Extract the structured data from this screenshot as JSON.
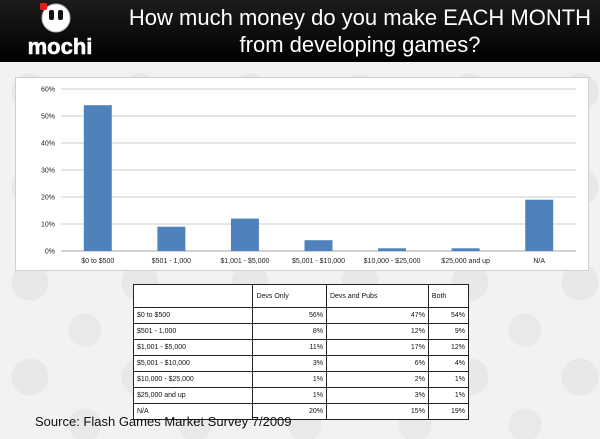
{
  "header": {
    "logo_text": "mochi",
    "title_line1": "How much money do you make EACH MONTH",
    "title_line2": "from developing games?"
  },
  "colors": {
    "bar": "#4f81bd",
    "header_bg": "#000000",
    "logo_accent": "#e02020"
  },
  "chart_data": {
    "type": "bar",
    "title": "",
    "xlabel": "",
    "ylabel": "",
    "categories": [
      "$0 to $500",
      "$501 - 1,000",
      "$1,001 - $5,000",
      "$5,001 - $10,000",
      "$10,000 - $25,000",
      "$25,000 and up",
      "N/A"
    ],
    "values": [
      54,
      9,
      12,
      4,
      1,
      1,
      19
    ],
    "ylim": [
      0,
      60
    ],
    "yticks": [
      "0%",
      "10%",
      "20%",
      "30%",
      "40%",
      "50%",
      "60%"
    ],
    "grid": true,
    "legend": "none"
  },
  "table": {
    "columns": [
      "",
      "Devs Only",
      "Devs and Pubs",
      "Both"
    ],
    "rows": [
      [
        "$0 to $500",
        "56%",
        "47%",
        "54%"
      ],
      [
        "$501 - 1,000",
        "8%",
        "12%",
        "9%"
      ],
      [
        "$1,001 - $5,000",
        "11%",
        "17%",
        "12%"
      ],
      [
        "$5,001 - $10,000",
        "3%",
        "6%",
        "4%"
      ],
      [
        "$10,000 - $25,000",
        "1%",
        "2%",
        "1%"
      ],
      [
        "$25,000 and up",
        "1%",
        "3%",
        "1%"
      ],
      [
        "N/A",
        "20%",
        "15%",
        "19%"
      ]
    ]
  },
  "source": "Source: Flash Games Market Survey 7/2009"
}
